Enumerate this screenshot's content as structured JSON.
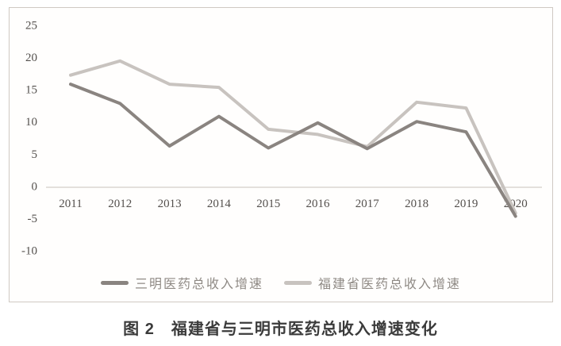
{
  "figure": {
    "caption": "图 2　福建省与三明市医药总收入增速变化"
  },
  "chart_data": {
    "type": "line",
    "title": "",
    "xlabel": "",
    "ylabel": "",
    "categories": [
      "2011",
      "2012",
      "2013",
      "2014",
      "2015",
      "2016",
      "2017",
      "2018",
      "2019",
      "2020"
    ],
    "series": [
      {
        "name": "三明医药总收入增速",
        "color": "#8a8480",
        "values": [
          16,
          13,
          6.4,
          11,
          6.1,
          10,
          6,
          10.2,
          8.6,
          -4.5
        ]
      },
      {
        "name": "福建省医药总收入增速",
        "color": "#c8c3bf",
        "values": [
          17.4,
          19.6,
          16,
          15.5,
          9,
          8.2,
          6.3,
          13.2,
          12.3,
          -4
        ]
      }
    ],
    "ylim": [
      -10,
      25
    ],
    "yticks": [
      25,
      20,
      15,
      10,
      5,
      0,
      "-5",
      "-10"
    ],
    "grid": "zero-line-only",
    "zero_line_color": "#d4cec9",
    "legend_position": "bottom"
  }
}
